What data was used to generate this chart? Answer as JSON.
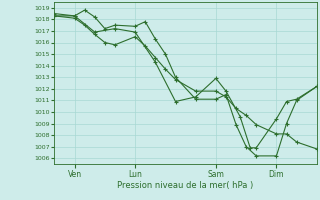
{
  "background_color": "#ceecea",
  "grid_color": "#a8d8d4",
  "line_color": "#2d6e2d",
  "ylabel_text": "Pression niveau de la mer( hPa )",
  "ylim": [
    1005.5,
    1019.5
  ],
  "yticks": [
    1006,
    1007,
    1008,
    1009,
    1010,
    1011,
    1012,
    1013,
    1014,
    1015,
    1016,
    1017,
    1018,
    1019
  ],
  "xtick_labels": [
    "Ven",
    "Lun",
    "Sam",
    "Dim"
  ],
  "xtick_positions": [
    1,
    4,
    8,
    11
  ],
  "xlim": [
    0,
    13
  ],
  "series1_x": [
    0,
    1,
    1.5,
    2,
    2.5,
    3,
    4,
    4.5,
    5,
    5.5,
    6,
    7,
    8,
    8.5,
    9,
    9.5,
    10,
    11,
    11.5,
    12,
    13
  ],
  "series1_y": [
    1018.3,
    1018.3,
    1018.8,
    1018.2,
    1017.2,
    1017.5,
    1017.4,
    1017.8,
    1016.3,
    1015.0,
    1013.0,
    1011.1,
    1011.1,
    1011.5,
    1008.9,
    1007.0,
    1006.2,
    1006.2,
    1009.0,
    1011.0,
    1012.2
  ],
  "series2_x": [
    0,
    1,
    1.5,
    2,
    2.5,
    3,
    4,
    4.5,
    5,
    5.5,
    6,
    7,
    8,
    8.5,
    9,
    9.5,
    10,
    11,
    11.5,
    12,
    13
  ],
  "series2_y": [
    1018.3,
    1018.1,
    1017.5,
    1016.7,
    1016.0,
    1015.8,
    1016.5,
    1015.7,
    1014.7,
    1013.7,
    1012.8,
    1011.8,
    1011.8,
    1011.3,
    1010.3,
    1009.7,
    1008.9,
    1008.1,
    1008.1,
    1007.4,
    1006.8
  ],
  "series3_x": [
    0,
    1,
    2,
    3,
    4,
    5,
    6,
    7,
    8,
    8.5,
    9.2,
    9.7,
    10,
    11,
    11.5,
    12,
    13
  ],
  "series3_y": [
    1018.5,
    1018.3,
    1016.9,
    1017.2,
    1016.9,
    1014.3,
    1010.9,
    1011.3,
    1012.9,
    1011.8,
    1009.6,
    1006.9,
    1006.9,
    1009.4,
    1010.9,
    1011.1,
    1012.2
  ]
}
